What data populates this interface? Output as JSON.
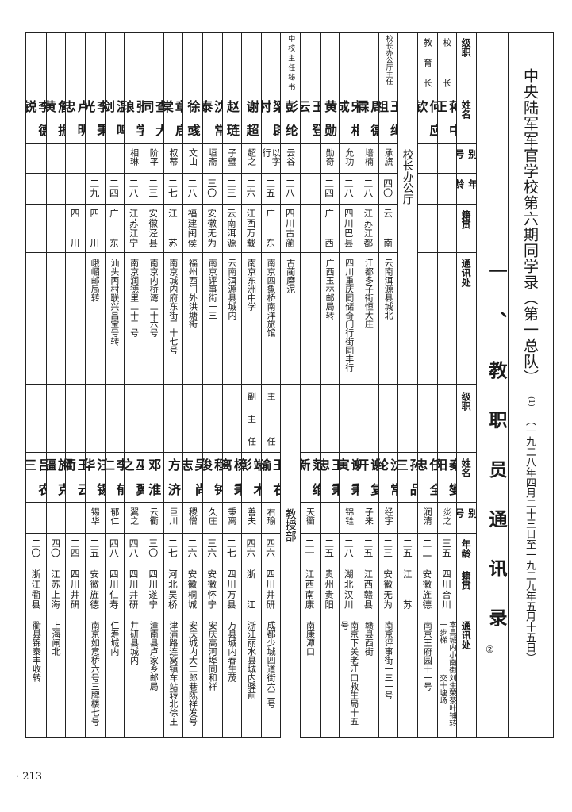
{
  "title": "中央陆军军官学校第六期同学录（第一总队）",
  "title_note": "(1)",
  "date_range": "（一九二八年四月二十三日至一九二九年五月十五日）",
  "section_heading": "一、教职员通讯录",
  "section_note": "②",
  "page_number": "· 213",
  "top_table": {
    "headers": [
      "级职",
      "姓名",
      "别号",
      "年龄",
      "籍贯",
      "通讯处"
    ],
    "columns": [
      {
        "rank": [
          "校长"
        ],
        "name": "蒋中正",
        "alias": "",
        "age": "",
        "origin": "",
        "address": []
      },
      {
        "rank": [
          "教育长"
        ],
        "name": "何应钦",
        "alias": "",
        "age": "",
        "origin": "",
        "address": []
      },
      {
        "section": "校长办公厅"
      },
      {
        "rank": [
          "校长办公厅",
          "主任"
        ],
        "name": "王绳祖",
        "alias": "承旒",
        "age": "四〇",
        "origin": "云南",
        "address": [
          "云南洱源县城北"
        ]
      },
      {
        "rank": [],
        "name": "周德霖",
        "alias": "培楠",
        "age": "二八",
        "origin": "江苏江都",
        "address": [
          "江都多子街恒大庄"
        ]
      },
      {
        "rank": [],
        "name": "宋相成",
        "alias": "允功",
        "age": "二八",
        "origin": "四川巴县",
        "address": [
          "四川重庆同储奇门行街同丰行"
        ]
      },
      {
        "rank": [],
        "name": "黄勋",
        "alias": "勋奇",
        "age": "二四",
        "origin": "广西",
        "address": [
          "广西玉林邮局转"
        ]
      },
      {
        "rank": [],
        "name": "王登云",
        "alias": "",
        "age": "",
        "origin": "",
        "address": []
      },
      {
        "rank": [
          "中校主任秘书"
        ],
        "name": "彭纶",
        "alias": "云谷",
        "age": "二八",
        "origin": "四川古蔺",
        "address": [
          "古蔺磨泥"
        ]
      },
      {
        "rank": [],
        "name": "梁辟村",
        "alias": "以字行",
        "age": "二五",
        "origin": "广东",
        "address": [
          "南京四象桥南洋旅馆"
        ]
      },
      {
        "rank": [],
        "name": "谢超",
        "alias": "超之",
        "age": "二六",
        "origin": "江西万载",
        "address": [
          "南京东洲中学"
        ]
      },
      {
        "rank": [],
        "name": "赵琏",
        "alias": "子璧",
        "age": "二三",
        "origin": "云南洱源",
        "address": [
          "云南洱源县城内"
        ]
      },
      {
        "rank": [],
        "name": "沈常泰",
        "alias": "垣斋",
        "age": "三〇",
        "origin": "安徽无为",
        "address": [
          "南京评事街一三一"
        ]
      },
      {
        "rank": [],
        "name": "徐彧",
        "alias": "文山",
        "age": "二八",
        "origin": "福建闽侯",
        "address": [
          "福州西门外洪塘街"
        ]
      },
      {
        "rank": [],
        "name": "章启棠",
        "alias": "叔蒂",
        "age": "二七",
        "origin": "江苏",
        "address": [
          "南京城内府东街三十七号"
        ]
      },
      {
        "rank": [],
        "name": "查大同",
        "alias": "阶平",
        "age": "二三",
        "origin": "安徽泾县",
        "address": [
          "南京内桥湾二十六号"
        ]
      },
      {
        "rank": [],
        "name": "张学琅",
        "alias": "相琳",
        "age": "二八",
        "origin": "江苏江宁",
        "address": [
          "南京润德里二十三号"
        ]
      },
      {
        "rank": [],
        "name": "温鸣剑",
        "alias": "",
        "age": "二四",
        "origin": "广东",
        "address": [
          "汕头丙村联兴昌宝号转"
        ]
      },
      {
        "rank": [],
        "name": "李秉光",
        "alias": "",
        "age": "二九",
        "origin": "四川",
        "address": [
          "峨嵋邮局转"
        ]
      },
      {
        "rank": [],
        "name": "卢明忠",
        "alias": "",
        "age": "",
        "origin": "四川",
        "address": []
      },
      {
        "rank": [],
        "name": "詹振黄",
        "alias": "",
        "age": "",
        "origin": "",
        "address": []
      },
      {
        "rank": [],
        "name": "李德锐",
        "alias": "",
        "age": "",
        "origin": "",
        "address": []
      }
    ]
  },
  "bottom_table": {
    "headers": [
      "级职",
      "姓名",
      "别号",
      "年龄",
      "籍贯",
      "通讯处"
    ],
    "columns": [
      {
        "rank": [],
        "name": "秦燮阳",
        "alias": "炎之",
        "age": "三五",
        "origin": "四川合川",
        "address": [
          "本县城内小南街一步梯",
          "刘生荣茶叶铺转交十塘场"
        ]
      },
      {
        "rank": [],
        "name": "任全忠",
        "alias": "润清",
        "age": "二二",
        "origin": "安徽旌德",
        "address": [
          "南京王府园十一号"
        ]
      },
      {
        "rank": [],
        "name": "孙品三",
        "alias": "",
        "age": "二五",
        "origin": "江苏",
        "address": []
      },
      {
        "rank": [],
        "name": "沈常纶",
        "alias": "经宇",
        "age": "二三",
        "origin": "安徽无为",
        "address": [
          "南京评事街一三一号"
        ]
      },
      {
        "rank": [],
        "name": "谢复开",
        "alias": "子来",
        "age": "二五",
        "origin": "江西赣县",
        "address": [
          "赣县西街"
        ]
      },
      {
        "rank": [],
        "name": "谢秉寅",
        "alias": "锦铨",
        "age": "二八",
        "origin": "湖北汉川",
        "address": [
          "南京下关老江口救生局十五号"
        ]
      },
      {
        "rank": [],
        "name": "王秉忠",
        "alias": "",
        "age": "二五",
        "origin": "贵州贵阳",
        "address": []
      },
      {
        "rank": [],
        "name": "范维新",
        "alias": "天衢",
        "age": "二一",
        "origin": "江西南康",
        "address": [
          "南康潭口"
        ]
      },
      {
        "section": "教授部"
      },
      {
        "rank": [
          "主任"
        ],
        "name": "王右瑜",
        "alias": "右瑜",
        "age": "四六",
        "origin": "四川井研",
        "address": [
          "成都少城四道街六三号"
        ]
      },
      {
        "rank": [
          "副主任"
        ],
        "name": "端木彰",
        "alias": "善夫",
        "age": "四六",
        "origin": "浙江",
        "address": [
          "浙江丽水县城内驿前"
        ]
      },
      {
        "rank": [],
        "name": "杨秉离",
        "alias": "秉离",
        "age": "二七",
        "origin": "四川万县",
        "address": [
          "万县城内春生茂"
        ]
      },
      {
        "rank": [],
        "name": "程钟俊",
        "alias": "久庄",
        "age": "三六",
        "origin": "安徽怀宁",
        "address": [
          "安庆高河埠同和祥"
        ]
      },
      {
        "rank": [],
        "name": "吴尚志",
        "alias": "稷僧",
        "age": "二六",
        "origin": "安徽桐城",
        "address": [
          "安庆城内大二郎巷陈祥发号"
        ]
      },
      {
        "rank": [],
        "name": "方济",
        "alias": "巨川",
        "age": "二七",
        "origin": "河北吴桥",
        "address": [
          "津浦路连窝镇车站转北徐王"
        ]
      },
      {
        "rank": [],
        "name": "邓淮",
        "alias": "云衢",
        "age": "三〇",
        "origin": "四川遂宁",
        "address": [
          "潼南县卢家乡邮局"
        ]
      },
      {
        "rank": [],
        "name": "巫翼之",
        "alias": "翼之",
        "age": "四八",
        "origin": "四川井研",
        "address": [
          "井研县城内"
        ]
      },
      {
        "rank": [],
        "name": "李郁仁",
        "alias": "郁仁",
        "age": "四八",
        "origin": "四川仁寿",
        "address": [
          "仁寿城内"
        ]
      },
      {
        "rank": [],
        "name": "汪锡华",
        "alias": "锡华",
        "age": "二五",
        "origin": "安徽旌德",
        "address": [
          "南京如意桥六号三牌楼七号"
        ]
      },
      {
        "rank": [],
        "name": "王云衢",
        "alias": "",
        "age": "二四",
        "origin": "四川井研",
        "address": []
      },
      {
        "rank": [],
        "name": "施克疆",
        "alias": "",
        "age": "四〇",
        "origin": "江苏上海",
        "address": [
          "上海闸北"
        ]
      },
      {
        "rank": [],
        "name": "吕农三",
        "alias": "",
        "age": "二〇",
        "origin": "浙江衢县",
        "address": [
          "衢县锦泰丰收转"
        ]
      }
    ]
  }
}
